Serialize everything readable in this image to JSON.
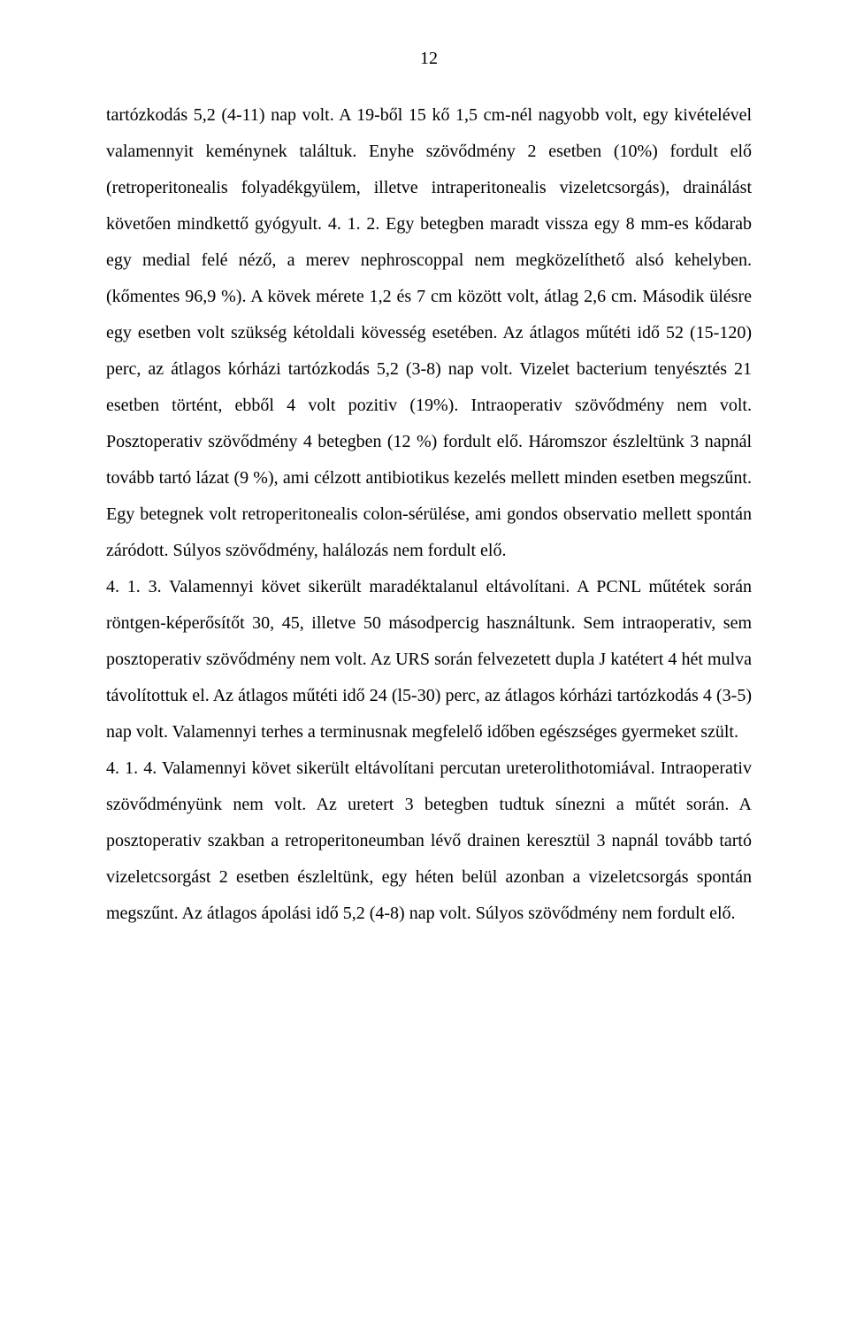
{
  "page_number": "12",
  "body_text": "tartózkodás 5,2 (4-11) nap volt. A 19-ből 15 kő 1,5 cm-nél nagyobb volt, egy kivételével valamennyit keménynek találtuk. Enyhe szövődmény 2 esetben (10%) fordult elő (retroperitonealis folyadékgyülem, illetve intraperitonealis vizeletcsorgás), drainálást követően mindkettő gyógyult. 4. 1. 2. Egy betegben maradt vissza egy 8 mm-es kődarab egy medial felé néző, a merev nephroscoppal nem megközelíthető alsó kehelyben. (kőmentes 96,9 %). A kövek mérete 1,2 és 7 cm között volt, átlag 2,6 cm. Második ülésre egy esetben volt szükség kétoldali kövesség esetében. Az átlagos műtéti idő 52 (15-120) perc, az átlagos kórházi tartózkodás 5,2 (3-8) nap volt. Vizelet bacterium tenyésztés 21 esetben történt, ebből 4 volt pozitiv (19%). Intraoperativ szövődmény nem volt. Posztoperativ szövődmény 4 betegben (12 %) fordult elő. Háromszor észleltünk 3 napnál tovább tartó lázat (9 %), ami célzott antibiotikus kezelés mellett minden esetben megszűnt. Egy betegnek volt retroperitonealis colon-sérülése, ami gondos observatio mellett spontán záródott. Súlyos szövődmény, halálozás nem fordult elő.\n4. 1. 3. Valamennyi követ sikerült maradéktalanul eltávolítani. A PCNL műtétek során röntgen-képerősítőt 30, 45, illetve 50 másodpercig használtunk. Sem intraoperativ, sem posztoperativ szövődmény nem volt. Az URS során felvezetett dupla J katétert 4 hét mulva távolítottuk el. Az átlagos műtéti idő 24 (l5-30) perc, az átlagos kórházi tartózkodás 4 (3-5) nap volt. Valamennyi terhes a terminusnak megfelelő időben egészséges gyermeket szült.\n4. 1. 4. Valamennyi követ sikerült eltávolítani percutan ureterolithotomiával. Intraoperativ szövődményünk nem volt. Az uretert 3 betegben tudtuk sínezni a műtét során. A posztoperativ szakban a retroperitoneumban lévő drainen keresztül 3 napnál tovább tartó vizeletcsorgást 2 esetben észleltünk, egy héten belül azonban a vizeletcsorgás spontán megszűnt. Az átlagos ápolási idő 5,2 (4-8) nap volt. Súlyos szövődmény nem fordult elő.",
  "colors": {
    "background": "#ffffff",
    "text": "#000000"
  },
  "typography": {
    "font_family": "Times New Roman",
    "font_size_pt": 15,
    "line_height": 2.05,
    "align": "justify"
  }
}
